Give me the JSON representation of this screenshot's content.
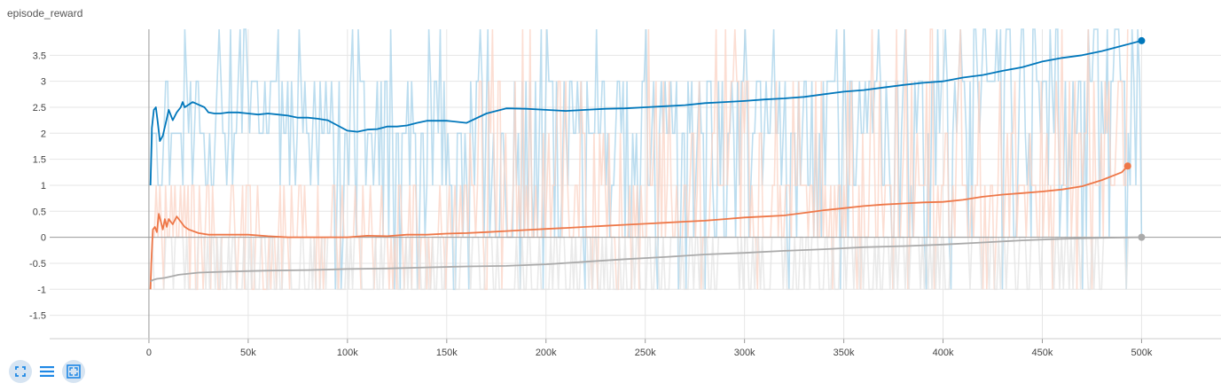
{
  "card": {
    "title": "episode_reward"
  },
  "chart_data": {
    "type": "line",
    "title": "episode_reward",
    "xlabel": "",
    "ylabel": "",
    "xlim": [
      -50000,
      540000
    ],
    "ylim": [
      -1.95,
      4.0
    ],
    "x_ticks": [
      0,
      50000,
      100000,
      150000,
      200000,
      250000,
      300000,
      350000,
      400000,
      450000,
      500000
    ],
    "x_tick_labels": [
      "0",
      "50k",
      "100k",
      "150k",
      "200k",
      "250k",
      "300k",
      "350k",
      "400k",
      "450k",
      "500k"
    ],
    "y_ticks": [
      3.5,
      3,
      2.5,
      2,
      1.5,
      1,
      0.5,
      0,
      -0.5,
      -1,
      -1.5
    ],
    "y_tick_labels": [
      "3.5",
      "3",
      "2.5",
      "2",
      "1.5",
      "1",
      "0.5",
      "0",
      "-0.5",
      "-1",
      "-1.5"
    ],
    "grid": true,
    "series": [
      {
        "color": "#0077bb",
        "raw_color": "#a6d2ea",
        "raw_range": [
          1,
          4
        ],
        "raw_range_after": {
          "from_x": 90000,
          "range": [
            -1,
            4
          ]
        },
        "smoothed": {
          "x": [
            800,
            1500,
            2500,
            3500,
            4500,
            5500,
            7000,
            8500,
            10000,
            12000,
            14000,
            16000,
            17000,
            18000,
            20000,
            22000,
            25000,
            28000,
            30000,
            33000,
            36000,
            40000,
            45000,
            50000,
            55000,
            60000,
            65000,
            70000,
            75000,
            80000,
            85000,
            90000,
            95000,
            100000,
            105000,
            110000,
            115000,
            120000,
            125000,
            130000,
            135000,
            140000,
            150000,
            160000,
            170000,
            180000,
            190000,
            200000,
            210000,
            220000,
            230000,
            240000,
            250000,
            260000,
            270000,
            280000,
            290000,
            300000,
            310000,
            320000,
            330000,
            340000,
            350000,
            360000,
            370000,
            380000,
            390000,
            400000,
            410000,
            420000,
            430000,
            440000,
            450000,
            460000,
            470000,
            480000,
            490000,
            500000
          ],
          "y": [
            1.0,
            2.1,
            2.45,
            2.5,
            2.2,
            1.85,
            1.95,
            2.2,
            2.45,
            2.25,
            2.4,
            2.5,
            2.6,
            2.5,
            2.55,
            2.6,
            2.55,
            2.5,
            2.4,
            2.38,
            2.38,
            2.4,
            2.4,
            2.38,
            2.36,
            2.38,
            2.36,
            2.34,
            2.3,
            2.3,
            2.28,
            2.25,
            2.15,
            2.05,
            2.03,
            2.07,
            2.08,
            2.13,
            2.13,
            2.15,
            2.2,
            2.24,
            2.24,
            2.2,
            2.38,
            2.48,
            2.47,
            2.45,
            2.43,
            2.45,
            2.47,
            2.48,
            2.5,
            2.52,
            2.54,
            2.58,
            2.6,
            2.62,
            2.65,
            2.67,
            2.7,
            2.75,
            2.8,
            2.83,
            2.88,
            2.93,
            2.97,
            3.0,
            3.07,
            3.12,
            3.2,
            3.27,
            3.38,
            3.45,
            3.5,
            3.58,
            3.68,
            3.78
          ]
        }
      },
      {
        "color": "#ee7748",
        "raw_color": "#fbd3c4",
        "raw_range": [
          -1,
          1
        ],
        "raw_range_after": {
          "from_x": 160000,
          "range": [
            -1,
            4
          ]
        },
        "smoothed": {
          "x": [
            800,
            1200,
            2000,
            3000,
            4000,
            5000,
            6000,
            7000,
            8000,
            9000,
            10000,
            12000,
            14000,
            16000,
            18000,
            20000,
            25000,
            30000,
            35000,
            40000,
            50000,
            60000,
            70000,
            80000,
            90000,
            100000,
            110000,
            120000,
            130000,
            140000,
            150000,
            160000,
            170000,
            180000,
            190000,
            200000,
            210000,
            220000,
            230000,
            240000,
            250000,
            260000,
            270000,
            280000,
            290000,
            300000,
            310000,
            320000,
            330000,
            340000,
            350000,
            360000,
            370000,
            380000,
            390000,
            400000,
            410000,
            420000,
            430000,
            440000,
            450000,
            460000,
            470000,
            480000,
            490000,
            493000
          ],
          "y": [
            -1.0,
            -0.5,
            0.15,
            0.2,
            0.1,
            0.45,
            0.3,
            0.15,
            0.35,
            0.2,
            0.35,
            0.25,
            0.4,
            0.3,
            0.2,
            0.15,
            0.08,
            0.05,
            0.05,
            0.05,
            0.05,
            0.02,
            0.0,
            0.0,
            0.0,
            0.0,
            0.03,
            0.02,
            0.05,
            0.05,
            0.07,
            0.08,
            0.1,
            0.12,
            0.14,
            0.16,
            0.18,
            0.2,
            0.22,
            0.24,
            0.26,
            0.28,
            0.3,
            0.32,
            0.35,
            0.38,
            0.4,
            0.42,
            0.47,
            0.52,
            0.56,
            0.6,
            0.63,
            0.65,
            0.67,
            0.68,
            0.72,
            0.78,
            0.82,
            0.85,
            0.88,
            0.92,
            0.98,
            1.1,
            1.25,
            1.37
          ]
        }
      },
      {
        "color": "#aaaaaa",
        "raw_color": "#e3e3e3",
        "raw_range": [
          -1,
          0
        ],
        "smoothed": {
          "x": [
            800,
            2000,
            4000,
            8000,
            15000,
            25000,
            40000,
            60000,
            80000,
            100000,
            120000,
            140000,
            160000,
            180000,
            200000,
            220000,
            240000,
            260000,
            280000,
            300000,
            320000,
            340000,
            360000,
            380000,
            400000,
            420000,
            440000,
            460000,
            480000,
            500000
          ],
          "y": [
            -0.85,
            -0.82,
            -0.8,
            -0.78,
            -0.72,
            -0.68,
            -0.66,
            -0.64,
            -0.63,
            -0.61,
            -0.6,
            -0.58,
            -0.56,
            -0.55,
            -0.52,
            -0.47,
            -0.42,
            -0.38,
            -0.33,
            -0.3,
            -0.26,
            -0.23,
            -0.19,
            -0.17,
            -0.14,
            -0.1,
            -0.06,
            -0.03,
            -0.01,
            0.0
          ]
        }
      }
    ]
  },
  "toolbar": {
    "icons": [
      "expand-icon",
      "list-icon",
      "fit-domain-icon"
    ],
    "accent": "#1e88e5"
  }
}
